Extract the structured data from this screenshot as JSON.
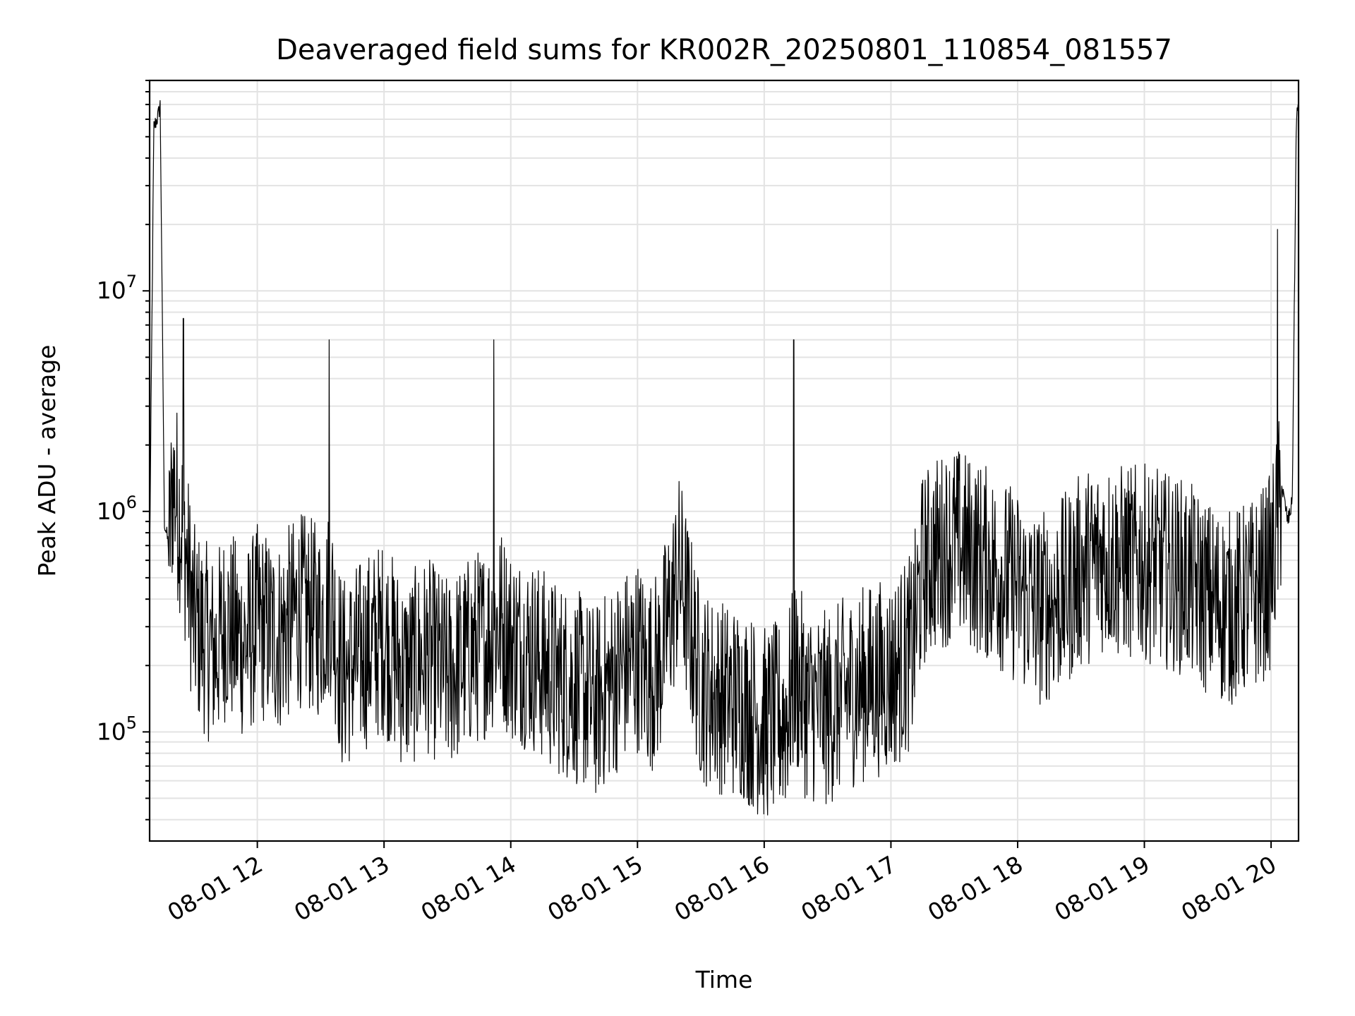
{
  "chart_data": {
    "type": "line",
    "title": "Deaveraged field sums for KR002R_20250801_110854_081557",
    "xlabel": "Time",
    "ylabel": "Peak ADU - average",
    "yscale": "log",
    "ylim": [
      32000,
      90000000
    ],
    "xlim": [
      "2025-08-01 11:09",
      "2025-08-01 20:13"
    ],
    "grid": "major and minor, light gray",
    "line_color": "#000000",
    "x_ticks": [
      {
        "time": "2025-08-01 12:00",
        "label": "08-01 12"
      },
      {
        "time": "2025-08-01 13:00",
        "label": "08-01 13"
      },
      {
        "time": "2025-08-01 14:00",
        "label": "08-01 14"
      },
      {
        "time": "2025-08-01 15:00",
        "label": "08-01 15"
      },
      {
        "time": "2025-08-01 16:00",
        "label": "08-01 16"
      },
      {
        "time": "2025-08-01 17:00",
        "label": "08-01 17"
      },
      {
        "time": "2025-08-01 18:00",
        "label": "08-01 18"
      },
      {
        "time": "2025-08-01 19:00",
        "label": "08-01 19"
      },
      {
        "time": "2025-08-01 20:00",
        "label": "08-01 20"
      }
    ],
    "y_ticks": [
      {
        "value": 100000,
        "base": "10",
        "exp": "5"
      },
      {
        "value": 1000000,
        "base": "10",
        "exp": "6"
      },
      {
        "value": 10000000,
        "base": "10",
        "exp": "7"
      }
    ],
    "series": [
      {
        "x": [
          "2025-08-01 11:09",
          "2025-08-01 11:11",
          "2025-08-01 11:13",
          "2025-08-01 11:14",
          "2025-08-01 11:16",
          "2025-08-01 11:18",
          "2025-08-01 11:20",
          "2025-08-01 11:25",
          "2025-08-01 11:30",
          "2025-08-01 11:35",
          "2025-08-01 11:40",
          "2025-08-01 11:45",
          "2025-08-01 11:50",
          "2025-08-01 11:55",
          "2025-08-01 12:00",
          "2025-08-01 12:10",
          "2025-08-01 12:20",
          "2025-08-01 12:30",
          "2025-08-01 12:35",
          "2025-08-01 12:40",
          "2025-08-01 12:50",
          "2025-08-01 13:00",
          "2025-08-01 13:10",
          "2025-08-01 13:20",
          "2025-08-01 13:30",
          "2025-08-01 13:40",
          "2025-08-01 13:50",
          "2025-08-01 13:55",
          "2025-08-01 14:00",
          "2025-08-01 14:10",
          "2025-08-01 14:20",
          "2025-08-01 14:30",
          "2025-08-01 14:40",
          "2025-08-01 14:50",
          "2025-08-01 15:00",
          "2025-08-01 15:05",
          "2025-08-01 15:10",
          "2025-08-01 15:20",
          "2025-08-01 15:30",
          "2025-08-01 15:40",
          "2025-08-01 15:50",
          "2025-08-01 16:00",
          "2025-08-01 16:10",
          "2025-08-01 16:15",
          "2025-08-01 16:20",
          "2025-08-01 16:30",
          "2025-08-01 16:40",
          "2025-08-01 16:50",
          "2025-08-01 17:00",
          "2025-08-01 17:10",
          "2025-08-01 17:15",
          "2025-08-01 17:20",
          "2025-08-01 17:30",
          "2025-08-01 17:40",
          "2025-08-01 17:50",
          "2025-08-01 18:00",
          "2025-08-01 18:10",
          "2025-08-01 18:20",
          "2025-08-01 18:30",
          "2025-08-01 18:40",
          "2025-08-01 18:50",
          "2025-08-01 19:00",
          "2025-08-01 19:10",
          "2025-08-01 19:20",
          "2025-08-01 19:30",
          "2025-08-01 19:40",
          "2025-08-01 19:50",
          "2025-08-01 19:55",
          "2025-08-01 20:00",
          "2025-08-01 20:05",
          "2025-08-01 20:08",
          "2025-08-01 20:10",
          "2025-08-01 20:12"
        ],
        "y": [
          620000,
          55000000,
          62000000,
          70000000,
          900000,
          700000,
          1500000,
          900000,
          350000,
          300000,
          250000,
          350000,
          300000,
          280000,
          350000,
          300000,
          400000,
          350000,
          450000,
          200000,
          250000,
          300000,
          200000,
          250000,
          200000,
          250000,
          300000,
          350000,
          280000,
          250000,
          200000,
          180000,
          150000,
          200000,
          250000,
          200000,
          220000,
          600000,
          180000,
          160000,
          150000,
          120000,
          130000,
          200000,
          150000,
          140000,
          170000,
          190000,
          200000,
          260000,
          600000,
          700000,
          800000,
          700000,
          600000,
          500000,
          400000,
          450000,
          600000,
          700000,
          650000,
          650000,
          600000,
          550000,
          450000,
          400000,
          450000,
          500000,
          600000,
          1300000,
          900000,
          1100000,
          65000000
        ],
        "spikes": [
          {
            "x": "2025-08-01 11:25",
            "y": 7500000
          },
          {
            "x": "2025-08-01 12:34",
            "y": 6000000
          },
          {
            "x": "2025-08-01 13:52",
            "y": 6000000
          },
          {
            "x": "2025-08-01 16:14",
            "y": 6000000
          },
          {
            "x": "2025-08-01 20:03",
            "y": 19000000
          }
        ]
      }
    ]
  }
}
